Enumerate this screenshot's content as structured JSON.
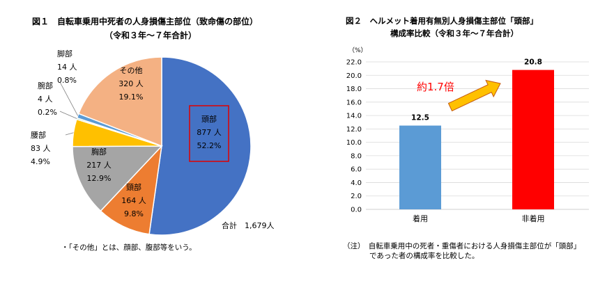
{
  "figure1": {
    "title_line1": "図１　自転車乗用中死者の人身損傷主部位（致命傷の部位）",
    "title_line2": "（令和３年～７年合計）",
    "total_label": "合計　1,679人",
    "footnote": "・「その他」とは、顔部、腹部等をいう。",
    "colors": {
      "head": "#4472c4",
      "neck": "#ed7d31",
      "chest": "#a5a5a5",
      "waist": "#ffc000",
      "arm": "#70ad47",
      "leg": "#5b9bd5",
      "other": "#f4b183",
      "highlight_box": "#e00000"
    }
  },
  "figure2": {
    "title_line1": "図２　ヘルメット着用有無別人身損傷主部位「頭部」",
    "title_line2": "構成率比較（令和３年～７年合計）",
    "unit": "（%）",
    "annotation": "約1.7倍",
    "note_line1": "（注）　自転車乗用中の死者・重傷者における人身損傷主部位が「頭部」",
    "note_line2": "であった者の構成率を比較した。",
    "colors": {
      "wearing": "#5b9bd5",
      "not_wearing": "#ff0000",
      "annotation": "#ff0000",
      "arrow": "#ffc000",
      "arrow_stroke": "#c55a11"
    }
  },
  "chart_data": [
    {
      "type": "pie",
      "title": "図１　自転車乗用中死者の人身損傷主部位（致命傷の部位）",
      "slices": [
        {
          "name": "頭部",
          "count": "877 人",
          "percent_label": "52.2%",
          "value": 877
        },
        {
          "name": "頸部",
          "count": "164 人",
          "percent_label": "9.8%",
          "value": 164
        },
        {
          "name": "胸部",
          "count": "217 人",
          "percent_label": "12.9%",
          "value": 217
        },
        {
          "name": "腰部",
          "count": "83 人",
          "percent_label": "4.9%",
          "value": 83
        },
        {
          "name": "腕部",
          "count": "4 人",
          "percent_label": "0.2%",
          "value": 4
        },
        {
          "name": "脚部",
          "count": "14 人",
          "percent_label": "0.8%",
          "value": 14
        },
        {
          "name": "その他",
          "count": "320 人",
          "percent_label": "19.1%",
          "value": 320
        }
      ]
    },
    {
      "type": "bar",
      "title": "図２　ヘルメット着用有無別人身損傷主部位「頭部」",
      "categories": [
        "着用",
        "非着用"
      ],
      "values": [
        12.5,
        20.8
      ],
      "value_labels": [
        "12.5",
        "20.8"
      ],
      "ylim": [
        0,
        22
      ],
      "yticks": [
        "0.0",
        "2.0",
        "4.0",
        "6.0",
        "8.0",
        "10.0",
        "12.0",
        "14.0",
        "16.0",
        "18.0",
        "20.0",
        "22.0"
      ],
      "grid": true
    }
  ]
}
